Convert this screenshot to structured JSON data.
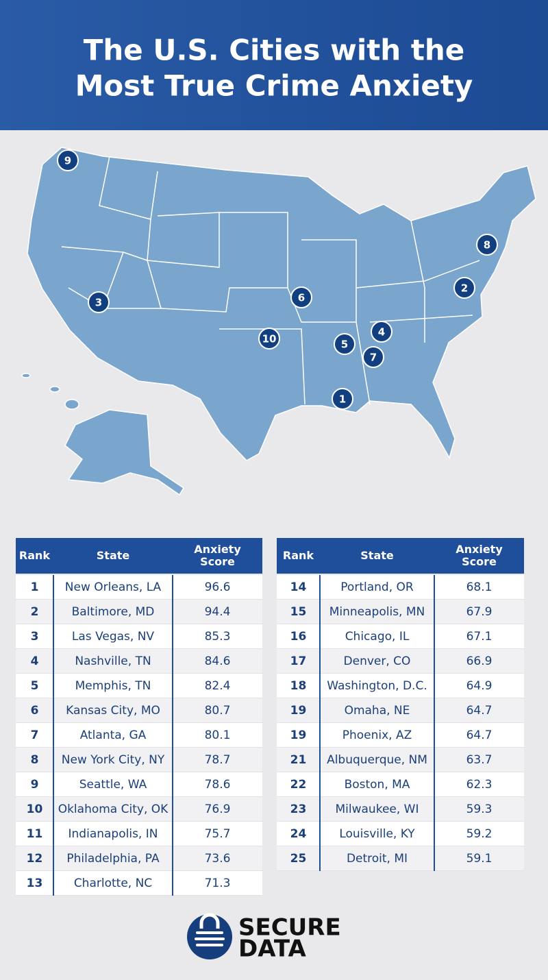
{
  "header": {
    "title_lines": [
      "The U.S. Cities with the",
      "Most True Crime Anxiety"
    ]
  },
  "map": {
    "markers": [
      {
        "label": "1"
      },
      {
        "label": "2"
      },
      {
        "label": "3"
      },
      {
        "label": "4"
      },
      {
        "label": "5"
      },
      {
        "label": "6"
      },
      {
        "label": "7"
      },
      {
        "label": "8"
      },
      {
        "label": "9"
      },
      {
        "label": "10"
      }
    ]
  },
  "tables": [
    {
      "columns": [
        "Rank",
        "State",
        "Anxiety Score"
      ],
      "rows": [
        [
          1,
          "New Orleans, LA",
          96.6
        ],
        [
          2,
          "Baltimore, MD",
          94.4
        ],
        [
          3,
          "Las Vegas, NV",
          85.3
        ],
        [
          4,
          "Nashville, TN",
          84.6
        ],
        [
          5,
          "Memphis, TN",
          82.4
        ],
        [
          6,
          "Kansas City, MO",
          80.7
        ],
        [
          7,
          "Atlanta, GA",
          80.1
        ],
        [
          8,
          "New York City, NY",
          78.7
        ],
        [
          9,
          "Seattle, WA",
          78.6
        ],
        [
          10,
          "Oklahoma City, OK",
          76.9
        ],
        [
          11,
          "Indianapolis, IN",
          75.7
        ],
        [
          12,
          "Philadelphia, PA",
          73.6
        ],
        [
          13,
          "Charlotte, NC",
          71.3
        ]
      ]
    },
    {
      "columns": [
        "Rank",
        "State",
        "Anxiety Score"
      ],
      "rows": [
        [
          14,
          "Portland, OR",
          68.1
        ],
        [
          15,
          "Minneapolis, MN",
          67.9
        ],
        [
          16,
          "Chicago, IL",
          67.1
        ],
        [
          17,
          "Denver, CO",
          66.9
        ],
        [
          18,
          "Washington, D.C.",
          64.9
        ],
        [
          19,
          "Omaha, NE",
          64.7
        ],
        [
          19,
          "Phoenix, AZ",
          64.7
        ],
        [
          21,
          "Albuquerque, NM",
          63.7
        ],
        [
          22,
          "Boston, MA",
          62.3
        ],
        [
          23,
          "Milwaukee, WI",
          59.3
        ],
        [
          24,
          "Louisville, KY",
          59.2
        ],
        [
          25,
          "Detroit, MI",
          59.1
        ]
      ]
    }
  ],
  "logo": {
    "lines": [
      "SECURE",
      "DATA"
    ]
  }
}
